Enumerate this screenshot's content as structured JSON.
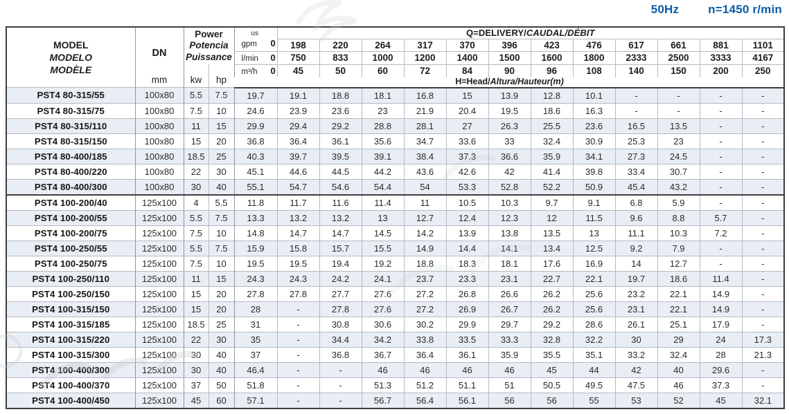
{
  "titlebar": {
    "frequency": "50Hz",
    "speed": "n=1450 r/min"
  },
  "header": {
    "model_line1": "MODEL",
    "model_line2": "MODELO",
    "model_line3": "MODÈLE",
    "dn_label": "DN",
    "dn_unit": "mm",
    "power_line1": "Power",
    "power_line2": "Potencia",
    "power_line3": "Puissance",
    "kw_label": "kw",
    "hp_label": "hp",
    "q_label_en": "Q=DELIVERY/",
    "q_label_intl": "CAUDAL/DÉBIT",
    "h_label_en": "H=Head/",
    "h_label_intl": "Altura/Hauteur(m)",
    "flow_units": {
      "us": "us",
      "gpm": "gpm",
      "lmin": "l/min",
      "m3h": "m³/h",
      "zero": "0"
    },
    "gpm_values": [
      "198",
      "220",
      "264",
      "317",
      "370",
      "396",
      "423",
      "476",
      "617",
      "661",
      "881",
      "1101"
    ],
    "lmin_values": [
      "750",
      "833",
      "1000",
      "1200",
      "1400",
      "1500",
      "1600",
      "1800",
      "2333",
      "2500",
      "3333",
      "4167"
    ],
    "m3h_values": [
      "45",
      "50",
      "60",
      "72",
      "84",
      "90",
      "96",
      "108",
      "140",
      "150",
      "200",
      "250"
    ]
  },
  "rows": [
    {
      "model": "PST4 80-315/55",
      "dn": "100x80",
      "kw": "5.5",
      "hp": "7.5",
      "head": [
        "19.7",
        "19.1",
        "18.8",
        "18.1",
        "16.8",
        "15",
        "13.9",
        "12.8",
        "10.1",
        "-",
        "-",
        "-",
        "-"
      ]
    },
    {
      "model": "PST4 80-315/75",
      "dn": "100x80",
      "kw": "7.5",
      "hp": "10",
      "head": [
        "24.6",
        "23.9",
        "23.6",
        "23",
        "21.9",
        "20.4",
        "19.5",
        "18.6",
        "16.3",
        "-",
        "-",
        "-",
        "-"
      ]
    },
    {
      "model": "PST4 80-315/110",
      "dn": "100x80",
      "kw": "11",
      "hp": "15",
      "head": [
        "29.9",
        "29.4",
        "29.2",
        "28.8",
        "28.1",
        "27",
        "26.3",
        "25.5",
        "23.6",
        "16.5",
        "13.5",
        "-",
        "-"
      ]
    },
    {
      "model": "PST4 80-315/150",
      "dn": "100x80",
      "kw": "15",
      "hp": "20",
      "head": [
        "36.8",
        "36.4",
        "36.1",
        "35.6",
        "34.7",
        "33.6",
        "33",
        "32.4",
        "30.9",
        "25.3",
        "23",
        "-",
        "-"
      ]
    },
    {
      "model": "PST4 80-400/185",
      "dn": "100x80",
      "kw": "18.5",
      "hp": "25",
      "head": [
        "40.3",
        "39.7",
        "39.5",
        "39.1",
        "38.4",
        "37.3",
        "36.6",
        "35.9",
        "34.1",
        "27.3",
        "24.5",
        "-",
        "-"
      ]
    },
    {
      "model": "PST4 80-400/220",
      "dn": "100x80",
      "kw": "22",
      "hp": "30",
      "head": [
        "45.1",
        "44.6",
        "44.5",
        "44.2",
        "43.6",
        "42.6",
        "42",
        "41.4",
        "39.8",
        "33.4",
        "30.7",
        "-",
        "-"
      ]
    },
    {
      "model": "PST4 80-400/300",
      "dn": "100x80",
      "kw": "30",
      "hp": "40",
      "head": [
        "55.1",
        "54.7",
        "54.6",
        "54.4",
        "54",
        "53.3",
        "52.8",
        "52.2",
        "50.9",
        "45.4",
        "43.2",
        "-",
        "-"
      ]
    },
    {
      "model": "PST4 100-200/40",
      "dn": "125x100",
      "kw": "4",
      "hp": "5.5",
      "head": [
        "11.8",
        "11.7",
        "11.6",
        "11.4",
        "11",
        "10.5",
        "10.3",
        "9.7",
        "9.1",
        "6.8",
        "5.9",
        "-",
        "-"
      ]
    },
    {
      "model": "PST4 100-200/55",
      "dn": "125x100",
      "kw": "5.5",
      "hp": "7.5",
      "head": [
        "13.3",
        "13.2",
        "13.2",
        "13",
        "12.7",
        "12.4",
        "12.3",
        "12",
        "11.5",
        "9.6",
        "8.8",
        "5.7",
        "-"
      ]
    },
    {
      "model": "PST4 100-200/75",
      "dn": "125x100",
      "kw": "7.5",
      "hp": "10",
      "head": [
        "14.8",
        "14.7",
        "14.7",
        "14.5",
        "14.2",
        "13.9",
        "13.8",
        "13.5",
        "13",
        "11.1",
        "10.3",
        "7.2",
        "-"
      ]
    },
    {
      "model": "PST4 100-250/55",
      "dn": "125x100",
      "kw": "5.5",
      "hp": "7.5",
      "head": [
        "15.9",
        "15.8",
        "15.7",
        "15.5",
        "14.9",
        "14.4",
        "14.1",
        "13.4",
        "12.5",
        "9.2",
        "7.9",
        "-",
        "-"
      ]
    },
    {
      "model": "PST4 100-250/75",
      "dn": "125x100",
      "kw": "7.5",
      "hp": "10",
      "head": [
        "19.5",
        "19.5",
        "19.4",
        "19.2",
        "18.8",
        "18.3",
        "18.1",
        "17.6",
        "16.9",
        "14",
        "12.7",
        "-",
        "-"
      ]
    },
    {
      "model": "PST4 100-250/110",
      "dn": "125x100",
      "kw": "11",
      "hp": "15",
      "head": [
        "24.3",
        "24.3",
        "24.2",
        "24.1",
        "23.7",
        "23.3",
        "23.1",
        "22.7",
        "22.1",
        "19.7",
        "18.6",
        "11.4",
        "-"
      ]
    },
    {
      "model": "PST4 100-250/150",
      "dn": "125x100",
      "kw": "15",
      "hp": "20",
      "head": [
        "27.8",
        "27.8",
        "27.7",
        "27.6",
        "27.2",
        "26.8",
        "26.6",
        "26.2",
        "25.6",
        "23.2",
        "22.1",
        "14.9",
        "-"
      ]
    },
    {
      "model": "PST4 100-315/150",
      "dn": "125x100",
      "kw": "15",
      "hp": "20",
      "head": [
        "28",
        "-",
        "27.8",
        "27.6",
        "27.2",
        "26.9",
        "26.7",
        "26.2",
        "25.6",
        "23.1",
        "22.1",
        "14.9",
        "-"
      ]
    },
    {
      "model": "PST4 100-315/185",
      "dn": "125x100",
      "kw": "18.5",
      "hp": "25",
      "head": [
        "31",
        "-",
        "30.8",
        "30.6",
        "30.2",
        "29.9",
        "29.7",
        "29.2",
        "28.6",
        "26.1",
        "25.1",
        "17.9",
        "-"
      ]
    },
    {
      "model": "PST4 100-315/220",
      "dn": "125x100",
      "kw": "22",
      "hp": "30",
      "head": [
        "35",
        "-",
        "34.4",
        "34.2",
        "33.8",
        "33.5",
        "33.3",
        "32.8",
        "32.2",
        "30",
        "29",
        "24",
        "17.3"
      ]
    },
    {
      "model": "PST4 100-315/300",
      "dn": "125x100",
      "kw": "30",
      "hp": "40",
      "head": [
        "37",
        "-",
        "36.8",
        "36.7",
        "36.4",
        "36.1",
        "35.9",
        "35.5",
        "35.1",
        "33.2",
        "32.4",
        "28",
        "21.3"
      ]
    },
    {
      "model": "PST4 100-400/300",
      "dn": "125x100",
      "kw": "30",
      "hp": "40",
      "head": [
        "46.4",
        "-",
        "-",
        "46",
        "46",
        "46",
        "46",
        "45",
        "44",
        "42",
        "40",
        "29.6",
        "-"
      ]
    },
    {
      "model": "PST4 100-400/370",
      "dn": "125x100",
      "kw": "37",
      "hp": "50",
      "head": [
        "51.8",
        "-",
        "-",
        "51.3",
        "51.2",
        "51.1",
        "51",
        "50.5",
        "49.5",
        "47.5",
        "46",
        "37.3",
        "-"
      ]
    },
    {
      "model": "PST4 100-400/450",
      "dn": "125x100",
      "kw": "45",
      "hp": "60",
      "head": [
        "57.1",
        "-",
        "-",
        "56.7",
        "56.4",
        "56.1",
        "56",
        "56",
        "55",
        "53",
        "52",
        "45",
        "32.1"
      ]
    }
  ],
  "accent_color": "#0b5ba7",
  "alt_row_color": "#e9eef5"
}
